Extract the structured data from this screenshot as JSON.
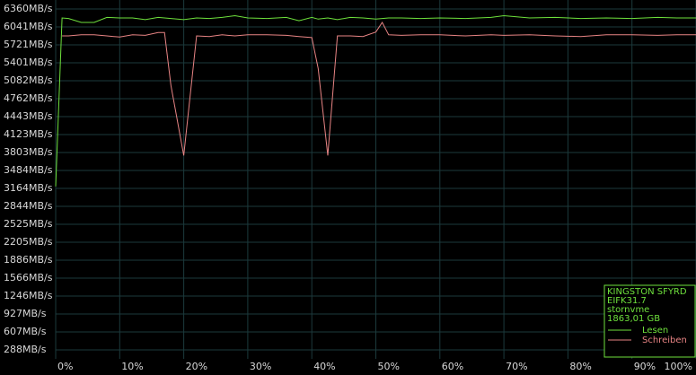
{
  "chart_data": {
    "type": "line",
    "x": [
      0,
      1,
      2,
      4,
      6,
      8,
      10,
      12,
      14,
      16,
      17,
      18,
      20,
      22,
      24,
      26,
      28,
      30,
      33,
      36,
      38,
      40,
      41,
      42.5,
      44,
      46,
      48,
      50,
      51,
      52,
      54,
      57,
      60,
      64,
      68,
      70,
      74,
      78,
      82,
      86,
      90,
      94,
      97,
      100
    ],
    "series": [
      {
        "name": "Lesen",
        "color": "#6ee03c",
        "values": [
          3200,
          6200,
          6190,
          6120,
          6120,
          6210,
          6200,
          6200,
          6170,
          6210,
          6200,
          6190,
          6170,
          6200,
          6190,
          6210,
          6240,
          6200,
          6190,
          6210,
          6150,
          6210,
          6180,
          6200,
          6170,
          6210,
          6200,
          6180,
          6190,
          6200,
          6200,
          6190,
          6200,
          6190,
          6210,
          6240,
          6200,
          6210,
          6190,
          6200,
          6190,
          6210,
          6200,
          6200
        ]
      },
      {
        "name": "Schreiben",
        "color": "#e88484",
        "values": [
          null,
          5880,
          5880,
          5900,
          5900,
          5880,
          5860,
          5900,
          5890,
          5940,
          5940,
          5000,
          3750,
          5880,
          5870,
          5900,
          5880,
          5900,
          5900,
          5890,
          5870,
          5850,
          5300,
          3750,
          5880,
          5880,
          5870,
          5950,
          6120,
          5900,
          5890,
          5900,
          5900,
          5880,
          5900,
          5890,
          5900,
          5880,
          5870,
          5900,
          5900,
          5890,
          5900,
          5900
        ]
      }
    ],
    "xlim": [
      0,
      100
    ],
    "xticks": [
      {
        "value": 0,
        "label": "0%"
      },
      {
        "value": 10,
        "label": "10%"
      },
      {
        "value": 20,
        "label": "20%"
      },
      {
        "value": 30,
        "label": "30%"
      },
      {
        "value": 40,
        "label": "40%"
      },
      {
        "value": 50,
        "label": "50%"
      },
      {
        "value": 60,
        "label": "60%"
      },
      {
        "value": 70,
        "label": "70%"
      },
      {
        "value": 80,
        "label": "80%"
      },
      {
        "value": 90,
        "label": "90%"
      },
      {
        "value": 100,
        "label": "100%"
      }
    ],
    "ylim": [
      288,
      6360
    ],
    "yticks": [
      {
        "value": 6360,
        "label": "6360MB/s"
      },
      {
        "value": 6041,
        "label": "6041MB/s"
      },
      {
        "value": 5721,
        "label": "5721MB/s"
      },
      {
        "value": 5401,
        "label": "5401MB/s"
      },
      {
        "value": 5082,
        "label": "5082MB/s"
      },
      {
        "value": 4762,
        "label": "4762MB/s"
      },
      {
        "value": 4443,
        "label": "4443MB/s"
      },
      {
        "value": 4123,
        "label": "4123MB/s"
      },
      {
        "value": 3803,
        "label": "3803MB/s"
      },
      {
        "value": 3484,
        "label": "3484MB/s"
      },
      {
        "value": 3164,
        "label": "3164MB/s"
      },
      {
        "value": 2844,
        "label": "2844MB/s"
      },
      {
        "value": 2525,
        "label": "2525MB/s"
      },
      {
        "value": 2205,
        "label": "2205MB/s"
      },
      {
        "value": 1886,
        "label": "1886MB/s"
      },
      {
        "value": 1566,
        "label": "1566MB/s"
      },
      {
        "value": 1246,
        "label": "1246MB/s"
      },
      {
        "value": 927,
        "label": "927MB/s"
      },
      {
        "value": 607,
        "label": "607MB/s"
      },
      {
        "value": 288,
        "label": "288MB/s"
      }
    ],
    "grid": true,
    "legend_info": [
      "KINGSTON SFYRD",
      "EIFK31.7",
      "stornvme",
      "1863,01 GB"
    ],
    "legend_color": "#6ee03c",
    "legend": "lower right"
  }
}
